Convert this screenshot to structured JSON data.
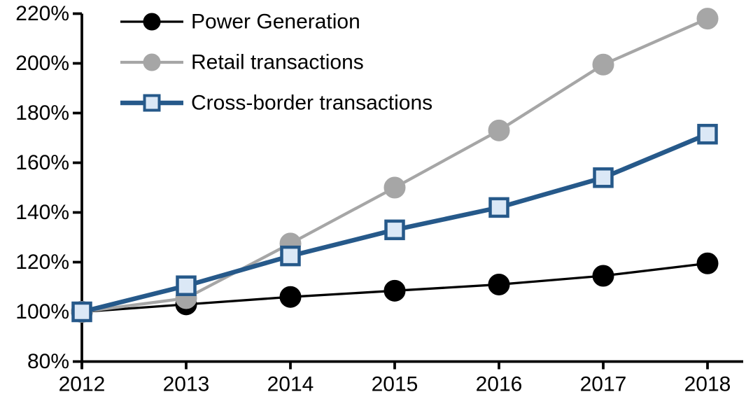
{
  "chart_data": {
    "type": "line",
    "title": "",
    "xlabel": "",
    "ylabel": "",
    "x": [
      2012,
      2013,
      2014,
      2015,
      2016,
      2017,
      2018
    ],
    "x_tick_labels": [
      "2012",
      "2013",
      "2014",
      "2015",
      "2016",
      "2017",
      "2018"
    ],
    "y_tick_labels": [
      "220%",
      "200%",
      "180%",
      "160%",
      "140%",
      "120%",
      "100%",
      "80%"
    ],
    "y_tick_values": [
      220,
      200,
      180,
      160,
      140,
      120,
      100,
      80
    ],
    "ylim": [
      80,
      220
    ],
    "grid": false,
    "legend_position": "top-left",
    "series": [
      {
        "name": "Power Generation",
        "slug": "power-generation",
        "values": [
          100,
          103,
          106,
          108.5,
          111,
          114.5,
          119.5
        ],
        "color": "#000000",
        "marker": "circle",
        "marker_fill": "#000000",
        "marker_stroke": "#000000",
        "line_width": 3.3
      },
      {
        "name": "Retail transactions",
        "slug": "retail-transactions",
        "values": [
          100,
          105.5,
          127.5,
          150,
          173,
          199.5,
          218
        ],
        "color": "#a6a6a6",
        "marker": "circle",
        "marker_fill": "#a6a6a6",
        "marker_stroke": "#a6a6a6",
        "line_width": 4.3
      },
      {
        "name": "Cross-border transactions",
        "slug": "cross-border-transactions",
        "values": [
          100,
          110.5,
          122.5,
          133,
          142,
          154,
          171.5
        ],
        "color": "#26598a",
        "marker": "square",
        "marker_fill": "#dbe8f6",
        "marker_stroke": "#26598a",
        "line_width": 6.5
      }
    ],
    "axis_color": "#000000"
  }
}
